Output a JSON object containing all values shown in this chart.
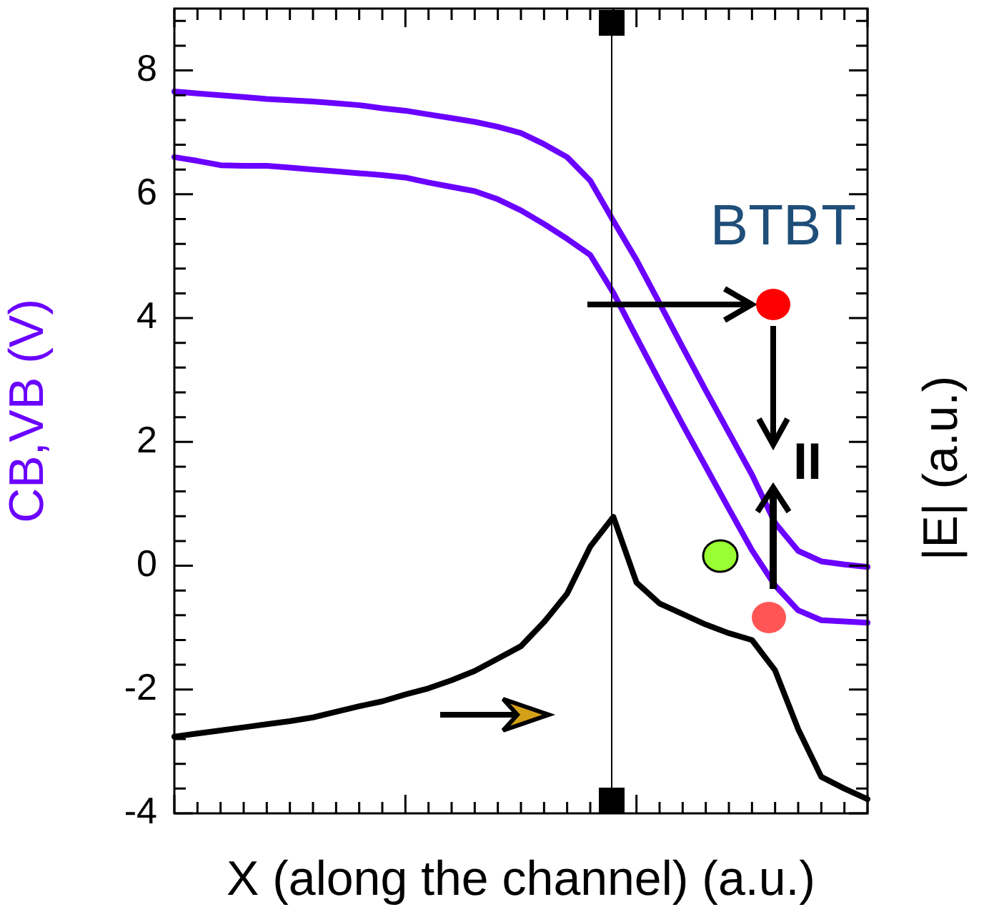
{
  "chart_data": {
    "type": "line",
    "xlabel": "X (along the channel) (a.u.)",
    "ylabel": "CB,VB (V)",
    "y2label": "|E| (a.u.)",
    "annotations": [
      "BTBT",
      "II"
    ],
    "categories": [
      null,
      null,
      null,
      null,
      null,
      null,
      null,
      null,
      null,
      null,
      null,
      null,
      null,
      null,
      null,
      null,
      null,
      null,
      null,
      null,
      null,
      null,
      null,
      null,
      null,
      null,
      null,
      null,
      null,
      null,
      null
    ],
    "ylim": [
      -4,
      9
    ],
    "yticks": [
      -4,
      {
        "value": -3.6,
        "label": null
      },
      {
        "value": -3.2,
        "label": null
      },
      {
        "value": -2.8,
        "label": null
      },
      {
        "value": -2.4,
        "label": null
      },
      -2,
      {
        "value": -1.6,
        "label": null
      },
      {
        "value": -1.2,
        "label": null
      },
      {
        "value": -0.8,
        "label": null
      },
      {
        "value": -0.4,
        "label": null
      },
      0,
      {
        "value": 0.4,
        "label": null
      },
      {
        "value": 0.8,
        "label": null
      },
      {
        "value": 1.2,
        "label": null
      },
      {
        "value": 1.6,
        "label": null
      },
      2,
      {
        "value": 2.4,
        "label": null
      },
      {
        "value": 2.8,
        "label": null
      },
      {
        "value": 3.2,
        "label": null
      },
      {
        "value": 3.6,
        "label": null
      },
      4,
      {
        "value": 4.4,
        "label": null
      },
      {
        "value": 4.8,
        "label": null
      },
      {
        "value": 5.2,
        "label": null
      },
      {
        "value": 5.6,
        "label": null
      },
      6,
      {
        "value": 6.4,
        "label": null
      },
      {
        "value": 6.8,
        "label": null
      },
      {
        "value": 7.2,
        "label": null
      },
      {
        "value": 7.6,
        "label": null
      },
      8,
      {
        "value": 8.4,
        "label": null
      },
      {
        "value": 8.8,
        "label": null
      }
    ],
    "tick_labels": "y",
    "grid": false,
    "legend": false,
    "marker": "none",
    "line_style": "solid",
    "series": [
      {
        "color": "#6a00ff",
        "values": [
          7.66,
          7.63,
          7.6,
          7.57,
          7.54,
          7.52,
          7.5,
          7.47,
          7.44,
          7.39,
          7.35,
          7.29,
          7.23,
          7.17,
          7.09,
          6.99,
          6.81,
          6.6,
          6.22,
          5.57,
          4.94,
          4.24,
          3.53,
          2.83,
          2.15,
          1.47,
          0.69,
          0.24,
          0.07,
          0.02,
          -0.02
        ]
      },
      {
        "color": "#6a00ff",
        "values": [
          6.6,
          6.54,
          6.47,
          6.46,
          6.46,
          6.43,
          6.4,
          6.37,
          6.34,
          6.31,
          6.27,
          6.19,
          6.12,
          6.05,
          5.92,
          5.74,
          5.52,
          5.28,
          5.02,
          4.41,
          3.69,
          2.98,
          2.28,
          1.6,
          0.92,
          0.25,
          -0.32,
          -0.72,
          -0.88,
          -0.9,
          -0.92
        ]
      },
      {
        "color": "#000000",
        "values": [
          -2.76,
          -2.71,
          -2.66,
          -2.61,
          -2.56,
          -2.51,
          -2.45,
          -2.36,
          -2.27,
          -2.19,
          -2.08,
          -1.98,
          -1.85,
          -1.7,
          -1.5,
          -1.3,
          -0.91,
          -0.45,
          0.31,
          0.79,
          -0.27,
          -0.61,
          -0.78,
          -0.95,
          -1.09,
          -1.2,
          -1.69,
          -2.64,
          -3.41,
          -3.6,
          -3.77
        ]
      }
    ]
  }
}
